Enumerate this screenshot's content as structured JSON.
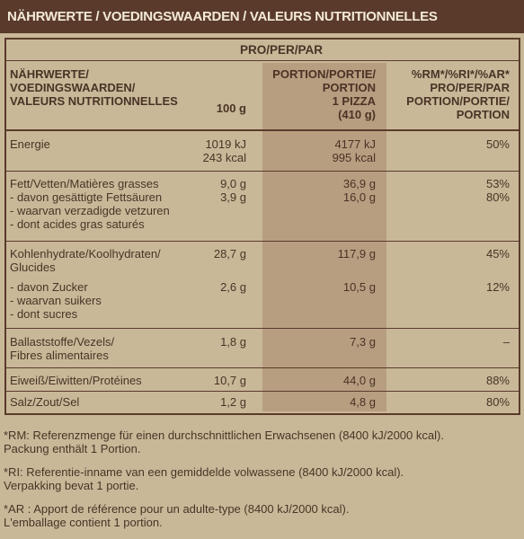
{
  "header": {
    "title": "NÄHRWERTE / VOEDINGSWAARDEN / VALEURS NUTRITIONNELLES"
  },
  "table": {
    "group_header": "PRO/PER/PAR",
    "col_label": [
      "NÄHRWERTE/",
      "VOEDINGSWAARDEN/",
      "VALEURS NUTRITIONNELLES"
    ],
    "col_100g": "100 g",
    "col_portion": [
      "PORTION/PORTIE/",
      "PORTION",
      "1 PIZZA",
      "(410 g)"
    ],
    "col_ri": [
      "%RM*/%RI*/%AR*",
      "PRO/PER/PAR",
      "PORTION/PORTIE/",
      "PORTION"
    ],
    "energy": {
      "label": "Energie",
      "v100_kj": "1019 kJ",
      "v100_kcal": "243 kcal",
      "vp_kj": "4177 kJ",
      "vp_kcal": "995 kcal",
      "ri": "50%"
    },
    "fat": {
      "label": "Fett/Vetten/Matières grasses",
      "v100": "9,0 g",
      "vp": "36,9 g",
      "ri": "53%",
      "sat_label1": "- davon gesättigte Fettsäuren",
      "sat_label2": "- waarvan verzadigde vetzuren",
      "sat_label3": "- dont acides gras saturés",
      "sat_v100": "3,9 g",
      "sat_vp": "16,0 g",
      "sat_ri": "80%"
    },
    "carb": {
      "label1": "Kohlenhydrate/Koolhydraten/",
      "label2": "Glucides",
      "v100": "28,7 g",
      "vp": "117,9 g",
      "ri": "45%",
      "sug_label1": "- davon Zucker",
      "sug_label2": "- waarvan suikers",
      "sug_label3": "- dont sucres",
      "sug_v100": "2,6 g",
      "sug_vp": "10,5 g",
      "sug_ri": "12%"
    },
    "fibre": {
      "label1": "Ballaststoffe/Vezels/",
      "label2": "Fibres alimentaires",
      "v100": "1,8 g",
      "vp": "7,3 g",
      "ri": "–"
    },
    "protein": {
      "label": "Eiweiß/Eiwitten/Protéines",
      "v100": "10,7 g",
      "vp": "44,0 g",
      "ri": "88%"
    },
    "salt": {
      "label": "Salz/Zout/Sel",
      "v100": "1,2 g",
      "vp": "4,8 g",
      "ri": "80%"
    }
  },
  "footnotes": {
    "rm1": "*RM: Referenzmenge für einen durchschnittlichen Erwachsenen (8400 kJ/2000 kcal).",
    "rm2": "Packung enthält 1 Portion.",
    "ri1": "*RI: Referentie-inname van een gemiddelde volwassene (8400 kJ/2000 kcal).",
    "ri2": "Verpakking bevat 1 portie.",
    "ar1": "*AR : Apport de référence pour un adulte-type (8400 kJ/2000 kcal).",
    "ar2": "L'emballage contient 1 portion."
  }
}
